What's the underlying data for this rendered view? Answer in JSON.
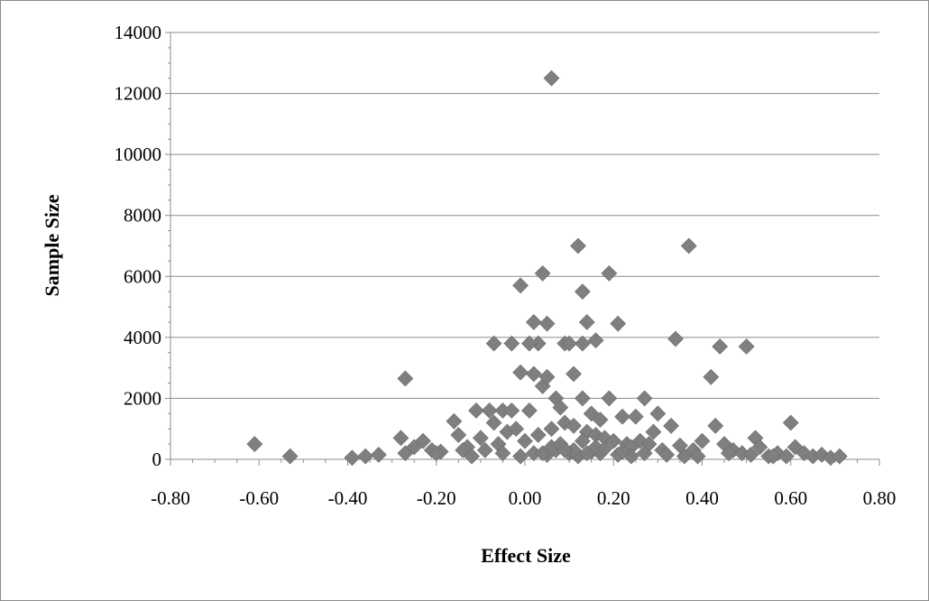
{
  "chart_data": {
    "type": "scatter",
    "title": "",
    "xlabel": "Effect Size",
    "ylabel": "Sample Size",
    "xlim": [
      -0.8,
      0.8
    ],
    "ylim": [
      0,
      14000
    ],
    "x_ticks": [
      "-0.80",
      "-0.60",
      "-0.40",
      "-0.20",
      "0.00",
      "0.20",
      "0.40",
      "0.60",
      "0.80"
    ],
    "y_ticks": [
      "0",
      "2000",
      "4000",
      "6000",
      "8000",
      "10000",
      "12000",
      "14000"
    ],
    "grid": "horizontal",
    "legend": "none",
    "marker": "diamond",
    "marker_color": "#7f7f7f",
    "series": [
      {
        "x": [
          0.06,
          0.12,
          0.37,
          0.04,
          0.19,
          0.13,
          -0.01,
          0.02,
          0.05,
          0.14,
          0.21,
          0.16,
          0.09,
          0.13,
          0.34,
          0.44,
          0.5,
          -0.07,
          -0.03,
          0.03,
          0.01,
          0.1,
          0.11,
          0.02,
          -0.01,
          0.42,
          -0.27,
          0.04,
          0.05,
          0.13,
          0.19,
          0.27,
          0.07,
          -0.08,
          -0.05,
          -0.03,
          0.01,
          0.15,
          0.22,
          0.25,
          0.3,
          0.33,
          0.6,
          0.43,
          -0.16,
          -0.11,
          -0.07,
          0.08,
          0.17,
          0.29,
          -0.61,
          -0.53,
          -0.39,
          -0.36,
          -0.33,
          -0.28,
          -0.27,
          -0.25,
          -0.23,
          -0.21,
          -0.19,
          -0.15,
          -0.13,
          -0.1,
          -0.09,
          -0.06,
          -0.04,
          -0.02,
          0.0,
          0.03,
          0.06,
          0.09,
          0.11,
          0.14,
          0.16,
          0.18,
          0.2,
          0.23,
          0.24,
          0.26,
          0.28,
          0.31,
          0.35,
          0.38,
          0.4,
          0.45,
          0.47,
          0.49,
          0.52,
          0.53,
          0.55,
          0.57,
          0.59,
          0.61,
          0.63,
          0.65,
          0.67,
          0.69,
          0.71,
          -0.2,
          -0.14,
          -0.12,
          -0.05,
          -0.01,
          0.02,
          0.05,
          0.07,
          0.1,
          0.12,
          0.15,
          0.17,
          0.21,
          0.24,
          0.27,
          0.32,
          0.36,
          0.39,
          0.46,
          0.51,
          0.56,
          0.06,
          0.08,
          0.11,
          0.13,
          0.16,
          0.18,
          0.22,
          0.04,
          0.09,
          0.14
        ],
        "y": [
          12500,
          7000,
          7000,
          6100,
          6100,
          5500,
          5700,
          4500,
          4450,
          4500,
          4450,
          3900,
          3800,
          3800,
          3950,
          3700,
          3700,
          3800,
          3800,
          3800,
          3800,
          3800,
          2800,
          2800,
          2850,
          2700,
          2650,
          2400,
          2700,
          2000,
          2000,
          2000,
          2000,
          1600,
          1600,
          1600,
          1600,
          1500,
          1400,
          1400,
          1500,
          1100,
          1200,
          1100,
          1250,
          1600,
          1200,
          1700,
          1300,
          900,
          500,
          100,
          50,
          100,
          150,
          700,
          200,
          400,
          600,
          300,
          250,
          800,
          400,
          700,
          300,
          500,
          900,
          1000,
          600,
          800,
          1000,
          1200,
          1100,
          900,
          800,
          700,
          600,
          500,
          400,
          600,
          500,
          300,
          450,
          300,
          600,
          500,
          300,
          200,
          700,
          400,
          100,
          200,
          100,
          400,
          200,
          100,
          150,
          50,
          100,
          200,
          300,
          100,
          200,
          100,
          200,
          150,
          300,
          200,
          100,
          250,
          200,
          150,
          100,
          200,
          150,
          100,
          100,
          200,
          150,
          100,
          400,
          500,
          300,
          600,
          400,
          350,
          250,
          200,
          300,
          200
        ]
      }
    ]
  }
}
